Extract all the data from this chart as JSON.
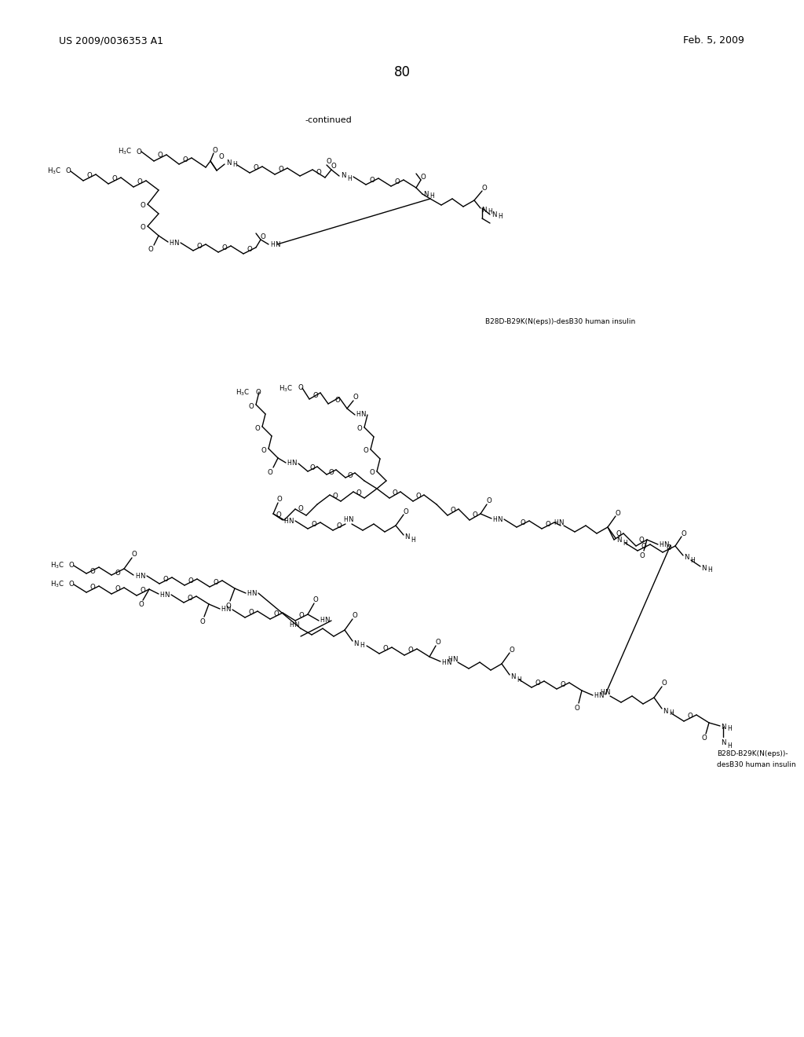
{
  "page_number": "80",
  "patent_number": "US 2009/0036353 A1",
  "patent_date": "Feb. 5, 2009",
  "continued_label": "-continued",
  "label1": "B28D-B29K(N(eps))-desB30 human insulin",
  "label2_line1": "B28D-B29K(N(eps))-",
  "label2_line2": "desB30 human insulin",
  "bg": "#ffffff",
  "lc": "#000000"
}
